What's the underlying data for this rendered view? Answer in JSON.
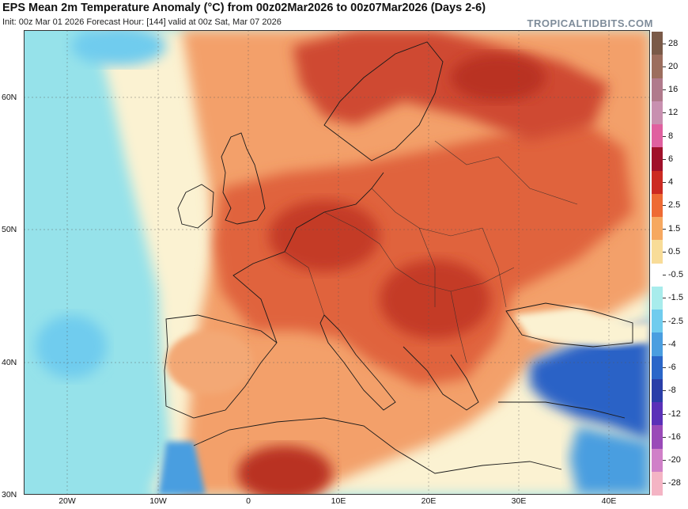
{
  "header": {
    "title": "EPS Mean 2m Temperature Anomaly (°C) from 00z02Mar2026 to 00z07Mar2026 (Days 2-6)",
    "init_line": "Init: 00z Mar 01 2026   Forecast Hour: [144]   valid at 00z Sat, Mar 07 2026",
    "brand": "TROPICALTIDBITS.COM"
  },
  "axes": {
    "lat_labels": [
      "60N",
      "50N",
      "40N",
      "30N"
    ],
    "lon_labels": [
      "20W",
      "10W",
      "0",
      "10E",
      "20E",
      "30E",
      "40E"
    ]
  },
  "colorbar": {
    "labels": [
      "28",
      "20",
      "16",
      "12",
      "8",
      "6",
      "4",
      "2.5",
      "1.5",
      "0.5",
      "-0.5",
      "-1.5",
      "-2.5",
      "-4",
      "-6",
      "-8",
      "-12",
      "-16",
      "-20",
      "-28"
    ],
    "colors": [
      "#7a5a48",
      "#9c6e5e",
      "#b07a8c",
      "#c890b0",
      "#e060a0",
      "#a0102a",
      "#cc2a22",
      "#ee6a34",
      "#f6a860",
      "#f8dc98",
      "#ffffff",
      "#a8ecec",
      "#70ccee",
      "#4a9ee0",
      "#2a66c8",
      "#2a3ea8",
      "#5a30b8",
      "#9a4ab8",
      "#d080c8",
      "#f4b4c4"
    ]
  },
  "map": {
    "regions": [
      "Europe",
      "North Africa",
      "Atlantic Ocean",
      "Mediterranean Sea",
      "Black Sea",
      "Middle East"
    ],
    "colors": {
      "ocean_cold": "#96e2ea",
      "ocean_neutral": "#fbf2d2",
      "land_warm": "#f3a06a",
      "land_hot": "#e0643c",
      "land_very_hot": "#b93224",
      "cold_east": "#2b62c6"
    }
  }
}
